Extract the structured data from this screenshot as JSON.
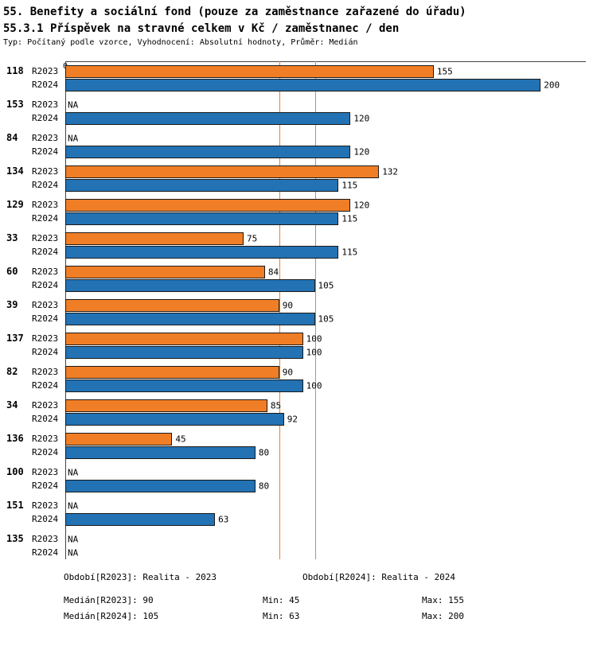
{
  "title": "55. Benefity a sociální fond (pouze za zaměstnance zařazené do úřadu)",
  "subtitle": "55.3.1 Příspěvek na stravné celkem v Kč / zaměstnanec / den",
  "meta": "Typ: Počítaný podle vzorce, Vyhodnocení: Absolutní hodnoty, Průměr: Medián",
  "chart_data": {
    "type": "bar",
    "orientation": "horizontal",
    "title": "55.3.1 Příspěvek na stravné celkem v Kč / zaměstnanec / den",
    "axis_origin_label": "0",
    "na_label": "NA",
    "xlim": [
      0,
      219
    ],
    "grid": "median-vertical-lines",
    "legend_position": "none",
    "categories": [
      "118",
      "153",
      "84",
      "134",
      "129",
      "33",
      "60",
      "39",
      "137",
      "82",
      "34",
      "136",
      "100",
      "151",
      "135"
    ],
    "series": [
      {
        "name": "R2023",
        "color": "#F07E26",
        "values": [
          155,
          null,
          null,
          132,
          120,
          75,
          84,
          90,
          100,
          90,
          85,
          45,
          null,
          null,
          null
        ]
      },
      {
        "name": "R2024",
        "color": "#2272B4",
        "values": [
          200,
          120,
          120,
          115,
          115,
          115,
          105,
          105,
          100,
          100,
          92,
          80,
          80,
          63,
          null
        ]
      }
    ],
    "median_lines": [
      {
        "series": "R2023",
        "value": 90,
        "color": "#F07E26"
      },
      {
        "series": "R2024",
        "value": 105,
        "color": "#999999"
      }
    ]
  },
  "footer": {
    "period_2023": "Období[R2023]: Realita - 2023",
    "period_2024": "Období[R2024]: Realita - 2024",
    "median_2023": "Medián[R2023]: 90",
    "min_2023": "Min: 45",
    "max_2023": "Max: 155",
    "median_2024": "Medián[R2024]: 105",
    "min_2024": "Min: 63",
    "max_2024": "Max: 200"
  }
}
